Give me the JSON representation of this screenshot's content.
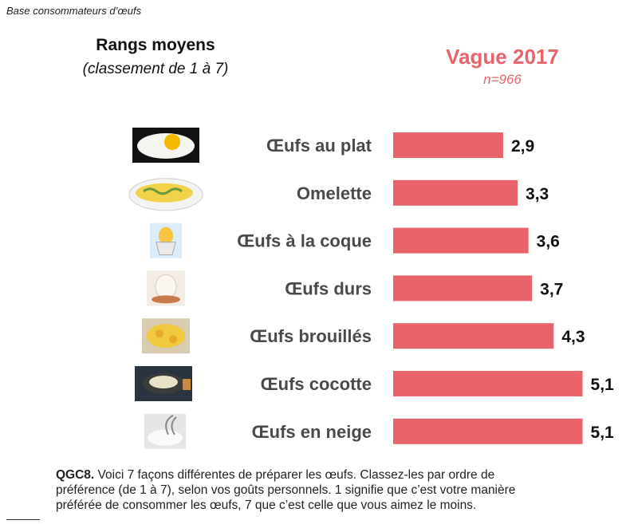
{
  "base_note": "Base consommateurs d’œufs",
  "header": {
    "title": "Rangs moyens",
    "subtitle": "(classement de 1 à 7)",
    "wave": "Vague 2017",
    "n": "n=966"
  },
  "colors": {
    "bar": "#e8646a",
    "accent": "#e8646a"
  },
  "chart_data": {
    "type": "bar",
    "orientation": "horizontal",
    "title": "Rangs moyens",
    "subtitle": "(classement de 1 à 7)",
    "series": [
      {
        "name": "Vague 2017",
        "values": [
          2.9,
          3.3,
          3.6,
          3.7,
          4.3,
          5.1,
          5.1
        ]
      }
    ],
    "categories": [
      "Œufs au plat",
      "Omelette",
      "Œufs à la coque",
      "Œufs durs",
      "Œufs brouillés",
      "Œufs cocotte",
      "Œufs en neige"
    ],
    "values": [
      2.9,
      3.3,
      3.6,
      3.7,
      4.3,
      5.1,
      5.1
    ],
    "data_labels": [
      "2,9",
      "3,3",
      "3,6",
      "3,7",
      "4,3",
      "5,1",
      "5,1"
    ],
    "icons": [
      "fried-egg-icon",
      "omelette-icon",
      "boiled-egg-cup-icon",
      "hard-boiled-egg-icon",
      "scrambled-eggs-icon",
      "egg-cocotte-icon",
      "whisked-egg-whites-icon"
    ],
    "xlim": [
      0,
      7
    ],
    "xlabel": "",
    "ylabel": "",
    "grid": false,
    "legend": "none"
  },
  "footer": {
    "code": "QGC8.",
    "line1": " Voici 7 façons différentes de préparer les œufs. Classez-les par ordre de",
    "line2": "préférence (de 1 à 7), selon vos goûts personnels. 1 signifie que c’est votre manière",
    "line3": "préférée de consommer les œufs, 7 que c’est celle que vous aimez le moins."
  }
}
